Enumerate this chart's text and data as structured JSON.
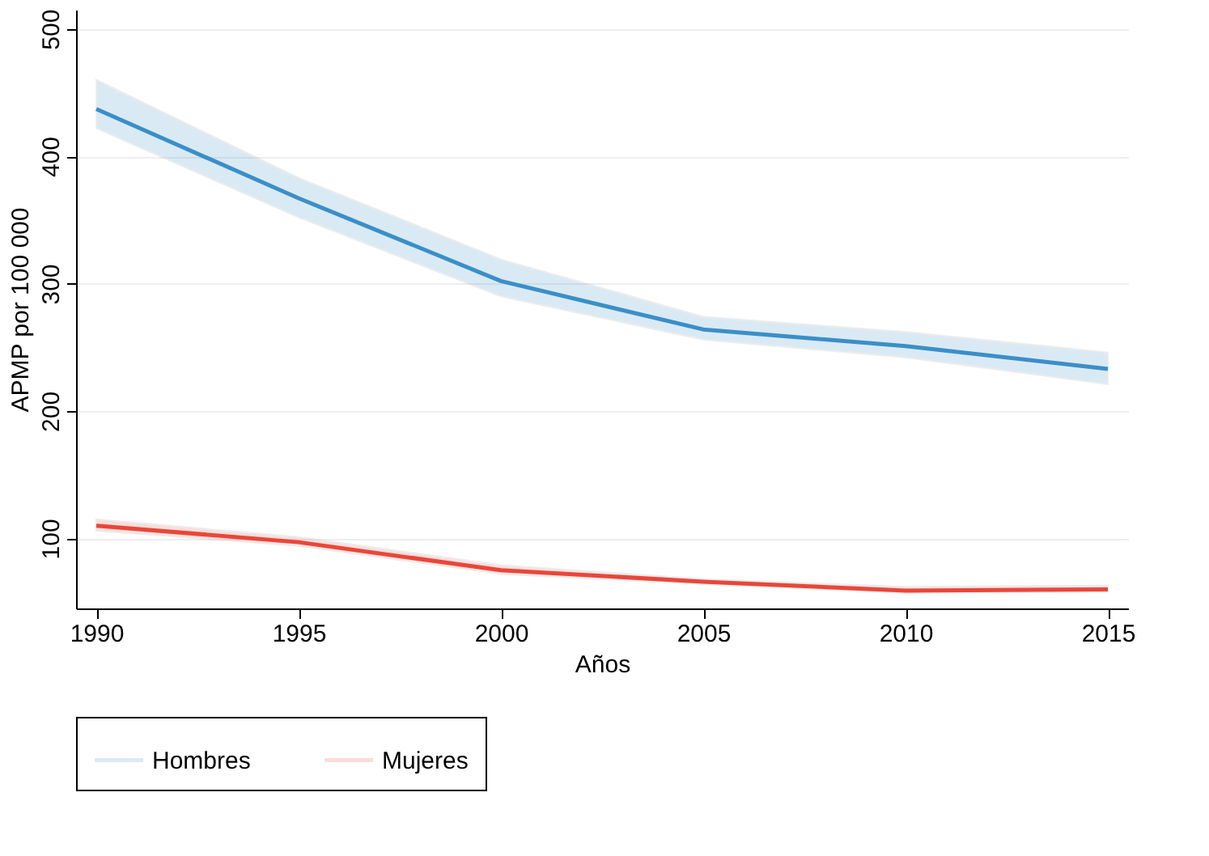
{
  "chart_data": {
    "type": "line",
    "xlabel": "Años",
    "ylabel": "APMP por 100 000",
    "x": [
      1990,
      1995,
      2000,
      2005,
      2010,
      2015
    ],
    "series": [
      {
        "name": "Hombres",
        "color": "#3a8fc8",
        "values": [
          437,
          367,
          302,
          264,
          251,
          233
        ],
        "lower": [
          422,
          352,
          290,
          256,
          242,
          221
        ],
        "upper": [
          460,
          383,
          319,
          274,
          262,
          246
        ]
      },
      {
        "name": "Mujeres",
        "color": "#e8473a",
        "values": [
          110,
          97,
          75,
          66,
          59,
          60
        ],
        "lower": [
          106,
          94,
          72,
          64,
          57,
          58
        ],
        "upper": [
          115,
          101,
          79,
          68,
          62,
          63
        ]
      }
    ],
    "xlim": [
      1989.5,
      2015.5
    ],
    "xticks": [
      1990,
      1995,
      2000,
      2005,
      2010,
      2015
    ],
    "ylim": [
      45,
      515
    ],
    "yticks": [
      100,
      200,
      300,
      400,
      500
    ],
    "grid": "y",
    "legend": "bottom",
    "line_style": "solid",
    "marker": "none"
  }
}
